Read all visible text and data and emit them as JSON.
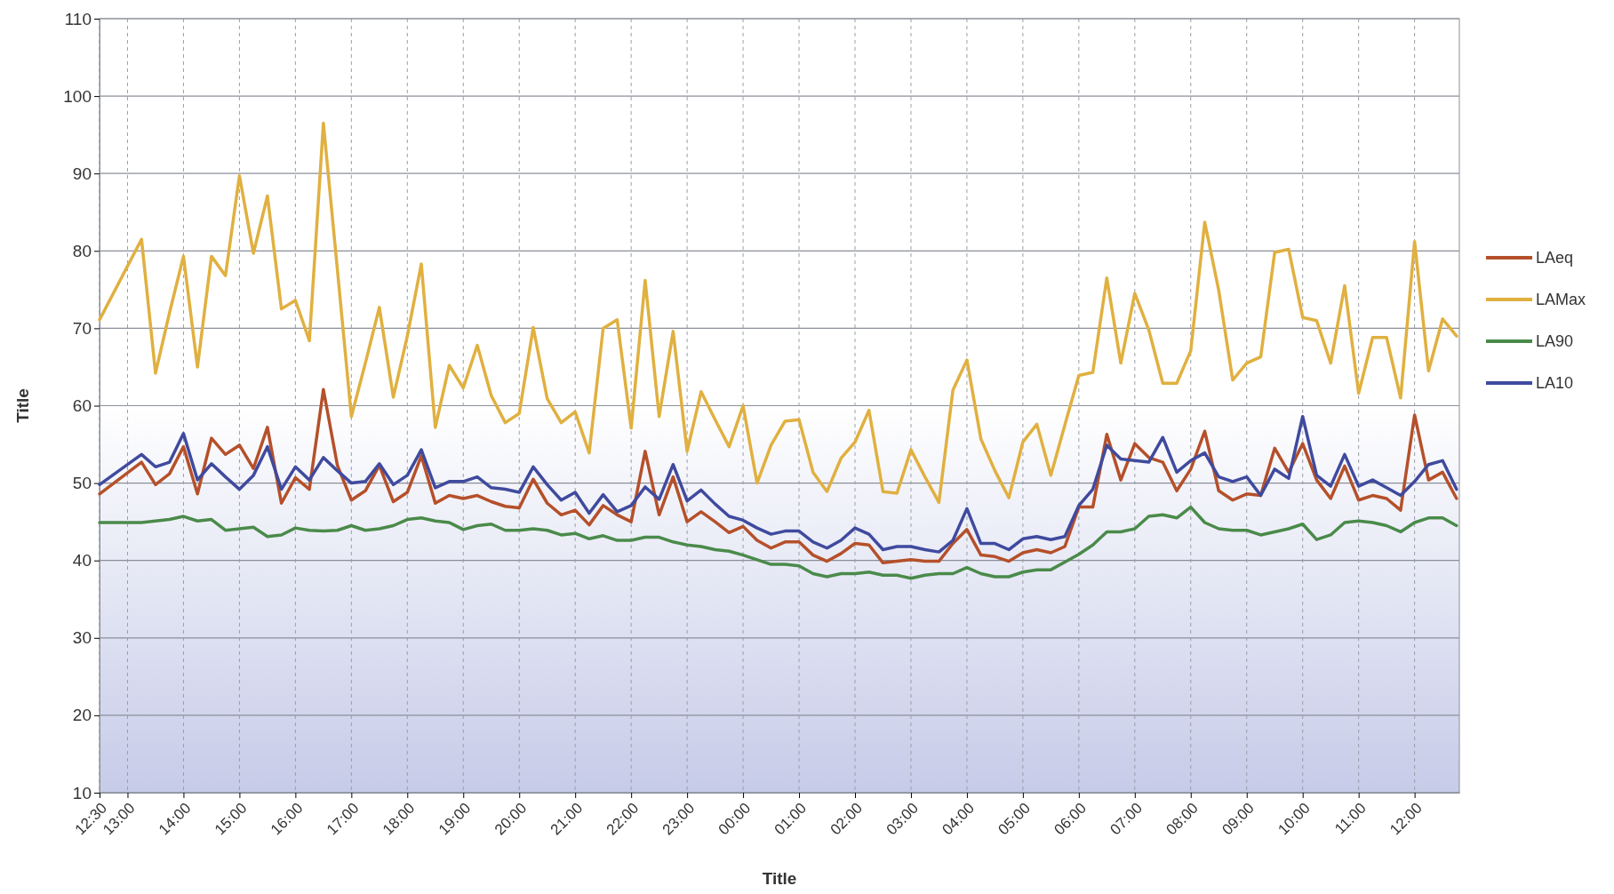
{
  "chart_data": {
    "type": "line",
    "xlabel": "Title",
    "ylabel": "Title",
    "xlim": [
      "2000-01-01T12:30",
      "2000-01-02T12:48"
    ],
    "ylim": [
      10,
      110
    ],
    "yticks": [
      10,
      20,
      30,
      40,
      50,
      60,
      70,
      80,
      90,
      100,
      110
    ],
    "xticks": [
      {
        "value": "2000-01-01T12:30",
        "label": "12:30"
      },
      {
        "value": "2000-01-01T13:00",
        "label": "13:00"
      },
      {
        "value": "2000-01-01T14:00",
        "label": "14:00"
      },
      {
        "value": "2000-01-01T15:00",
        "label": "15:00"
      },
      {
        "value": "2000-01-01T16:00",
        "label": "16:00"
      },
      {
        "value": "2000-01-01T17:00",
        "label": "17:00"
      },
      {
        "value": "2000-01-01T18:00",
        "label": "18:00"
      },
      {
        "value": "2000-01-01T19:00",
        "label": "19:00"
      },
      {
        "value": "2000-01-01T20:00",
        "label": "20:00"
      },
      {
        "value": "2000-01-01T21:00",
        "label": "21:00"
      },
      {
        "value": "2000-01-01T22:00",
        "label": "22:00"
      },
      {
        "value": "2000-01-01T23:00",
        "label": "23:00"
      },
      {
        "value": "2000-01-02T00:00",
        "label": "00:00"
      },
      {
        "value": "2000-01-02T01:00",
        "label": "01:00"
      },
      {
        "value": "2000-01-02T02:00",
        "label": "02:00"
      },
      {
        "value": "2000-01-02T03:00",
        "label": "03:00"
      },
      {
        "value": "2000-01-02T04:00",
        "label": "04:00"
      },
      {
        "value": "2000-01-02T05:00",
        "label": "05:00"
      },
      {
        "value": "2000-01-02T06:00",
        "label": "06:00"
      },
      {
        "value": "2000-01-02T07:00",
        "label": "07:00"
      },
      {
        "value": "2000-01-02T08:00",
        "label": "08:00"
      },
      {
        "value": "2000-01-02T09:00",
        "label": "09:00"
      },
      {
        "value": "2000-01-02T10:00",
        "label": "10:00"
      },
      {
        "value": "2000-01-02T11:00",
        "label": "11:00"
      },
      {
        "value": "2000-01-02T12:00",
        "label": "12:00"
      }
    ],
    "x": [
      "2000-01-01T12:30",
      "2000-01-01T13:15",
      "2000-01-01T13:30",
      "2000-01-01T13:45",
      "2000-01-01T14:00",
      "2000-01-01T14:15",
      "2000-01-01T14:30",
      "2000-01-01T14:45",
      "2000-01-01T15:00",
      "2000-01-01T15:15",
      "2000-01-01T15:30",
      "2000-01-01T15:45",
      "2000-01-01T16:00",
      "2000-01-01T16:15",
      "2000-01-01T16:30",
      "2000-01-01T16:45",
      "2000-01-01T17:00",
      "2000-01-01T17:15",
      "2000-01-01T17:30",
      "2000-01-01T17:45",
      "2000-01-01T18:00",
      "2000-01-01T18:15",
      "2000-01-01T18:30",
      "2000-01-01T18:45",
      "2000-01-01T19:00",
      "2000-01-01T19:15",
      "2000-01-01T19:30",
      "2000-01-01T19:45",
      "2000-01-01T20:00",
      "2000-01-01T20:15",
      "2000-01-01T20:30",
      "2000-01-01T20:45",
      "2000-01-01T21:00",
      "2000-01-01T21:15",
      "2000-01-01T21:30",
      "2000-01-01T21:45",
      "2000-01-01T22:00",
      "2000-01-01T22:15",
      "2000-01-01T22:30",
      "2000-01-01T22:45",
      "2000-01-01T23:00",
      "2000-01-01T23:15",
      "2000-01-01T23:30",
      "2000-01-01T23:45",
      "2000-01-02T00:00",
      "2000-01-02T00:15",
      "2000-01-02T00:30",
      "2000-01-02T00:45",
      "2000-01-02T01:00",
      "2000-01-02T01:15",
      "2000-01-02T01:30",
      "2000-01-02T01:45",
      "2000-01-02T02:00",
      "2000-01-02T02:15",
      "2000-01-02T02:30",
      "2000-01-02T02:45",
      "2000-01-02T03:00",
      "2000-01-02T03:15",
      "2000-01-02T03:30",
      "2000-01-02T03:45",
      "2000-01-02T04:00",
      "2000-01-02T04:15",
      "2000-01-02T04:30",
      "2000-01-02T04:45",
      "2000-01-02T05:00",
      "2000-01-02T05:15",
      "2000-01-02T05:30",
      "2000-01-02T05:45",
      "2000-01-02T06:00",
      "2000-01-02T06:15",
      "2000-01-02T06:30",
      "2000-01-02T06:45",
      "2000-01-02T07:00",
      "2000-01-02T07:15",
      "2000-01-02T07:30",
      "2000-01-02T07:45",
      "2000-01-02T08:00",
      "2000-01-02T08:15",
      "2000-01-02T08:30",
      "2000-01-02T08:45",
      "2000-01-02T09:00",
      "2000-01-02T09:15",
      "2000-01-02T09:30",
      "2000-01-02T09:45",
      "2000-01-02T10:00",
      "2000-01-02T10:15",
      "2000-01-02T10:30",
      "2000-01-02T10:45",
      "2000-01-02T11:00",
      "2000-01-02T11:15",
      "2000-01-02T11:30",
      "2000-01-02T11:45",
      "2000-01-02T12:00",
      "2000-01-02T12:15",
      "2000-01-02T12:30",
      "2000-01-02T12:45"
    ],
    "grid": true,
    "legend": "right",
    "line_style": "solid",
    "marker": "none",
    "series": [
      {
        "name": "LAeq",
        "color": "#b5502a",
        "values": [
          48.6,
          52.7,
          49.8,
          51.2,
          54.7,
          48.6,
          55.8,
          53.7,
          54.9,
          51.9,
          57.2,
          47.4,
          50.7,
          49.2,
          62.1,
          52.3,
          47.8,
          49,
          52.3,
          47.6,
          48.8,
          53.5,
          47.4,
          48.4,
          48,
          48.4,
          47.6,
          47,
          46.8,
          50.5,
          47.4,
          45.9,
          46.5,
          44.6,
          47.1,
          45.9,
          45,
          54.1,
          45.9,
          50.8,
          45,
          46.3,
          45,
          43.6,
          44.4,
          42.6,
          41.6,
          42.4,
          42.4,
          40.7,
          39.9,
          40.9,
          42.2,
          42,
          39.7,
          39.9,
          40.1,
          39.9,
          39.9,
          42.2,
          44,
          40.7,
          40.5,
          39.9,
          41,
          41.4,
          41,
          41.8,
          46.9,
          46.9,
          56.3,
          50.4,
          55.1,
          53.3,
          52.7,
          49,
          51.8,
          56.7,
          49,
          47.8,
          48.6,
          48.4,
          54.5,
          51.4,
          55.1,
          50.4,
          48,
          52.2,
          47.8,
          48.4,
          48,
          46.5,
          58.8,
          50.4,
          51.4,
          48
        ]
      },
      {
        "name": "LAMax",
        "color": "#e0b040",
        "values": [
          71.1,
          81.5,
          64.2,
          72,
          79.3,
          65,
          79.3,
          76.8,
          89.7,
          79.7,
          87.1,
          72.5,
          73.6,
          68.4,
          96.5,
          77.6,
          58.6,
          65.5,
          72.7,
          61.1,
          69,
          78.3,
          57.2,
          65.2,
          62.3,
          67.8,
          61.3,
          57.8,
          59,
          70.1,
          60.9,
          57.8,
          59.2,
          53.9,
          70,
          71.1,
          57.1,
          76.2,
          58.6,
          69.6,
          54.1,
          61.8,
          58.2,
          54.7,
          60,
          50,
          54.9,
          58,
          58.2,
          51.4,
          48.9,
          53.2,
          55.3,
          59.4,
          48.9,
          48.7,
          54.3,
          50.8,
          47.5,
          62,
          65.9,
          55.7,
          51.6,
          48.1,
          55.3,
          57.6,
          51,
          57.5,
          63.9,
          64.3,
          76.5,
          65.5,
          74.5,
          69.8,
          62.9,
          62.9,
          67.1,
          83.7,
          74.9,
          63.3,
          65.5,
          66.3,
          79.8,
          80.2,
          71.4,
          71,
          65.5,
          75.5,
          61.6,
          68.8,
          68.8,
          61,
          81.2,
          64.5,
          71.2,
          69
        ]
      },
      {
        "name": "LA90",
        "color": "#4a8a4a",
        "values": [
          44.9,
          44.9,
          45.1,
          45.3,
          45.7,
          45.1,
          45.3,
          43.9,
          44.1,
          44.3,
          43.1,
          43.3,
          44.2,
          43.9,
          43.8,
          43.9,
          44.5,
          43.9,
          44.1,
          44.5,
          45.3,
          45.5,
          45.1,
          44.9,
          44,
          44.5,
          44.7,
          43.9,
          43.9,
          44.1,
          43.9,
          43.3,
          43.5,
          42.8,
          43.2,
          42.6,
          42.6,
          43,
          43,
          42.4,
          42,
          41.8,
          41.4,
          41.2,
          40.7,
          40.1,
          39.5,
          39.5,
          39.3,
          38.3,
          37.9,
          38.3,
          38.3,
          38.5,
          38.1,
          38.1,
          37.7,
          38.1,
          38.3,
          38.3,
          39.1,
          38.3,
          37.9,
          37.9,
          38.5,
          38.8,
          38.8,
          39.8,
          40.8,
          42,
          43.7,
          43.7,
          44.1,
          45.7,
          45.9,
          45.5,
          46.9,
          44.9,
          44.1,
          43.9,
          43.9,
          43.3,
          43.7,
          44.1,
          44.7,
          42.7,
          43.3,
          44.9,
          45.1,
          44.9,
          44.5,
          43.7,
          44.9,
          45.5,
          45.5,
          44.5
        ]
      },
      {
        "name": "LA10",
        "color": "#3f4a9e",
        "values": [
          49.8,
          53.7,
          52.1,
          52.7,
          56.4,
          50.4,
          52.5,
          50.8,
          49.2,
          51,
          54.7,
          49.2,
          52.1,
          50.4,
          53.3,
          51.6,
          50,
          50.2,
          52.5,
          49.8,
          51,
          54.3,
          49.4,
          50.2,
          50.2,
          50.8,
          49.4,
          49.2,
          48.8,
          52.1,
          49.8,
          47.8,
          48.8,
          46.1,
          48.5,
          46.3,
          47.1,
          49.5,
          47.9,
          52.4,
          47.7,
          49.1,
          47.3,
          45.7,
          45.2,
          44.2,
          43.4,
          43.8,
          43.8,
          42.4,
          41.6,
          42.6,
          44.2,
          43.4,
          41.4,
          41.8,
          41.8,
          41.4,
          41.1,
          42.6,
          46.7,
          42.2,
          42.2,
          41.4,
          42.8,
          43.1,
          42.7,
          43.1,
          47.1,
          49.2,
          54.9,
          53.1,
          52.9,
          52.7,
          55.9,
          51.4,
          52.9,
          53.9,
          50.8,
          50.2,
          50.8,
          48.4,
          51.8,
          50.6,
          58.6,
          51,
          49.6,
          53.7,
          49.6,
          50.4,
          49.4,
          48.4,
          50.2,
          52.4,
          52.9,
          49.2
        ]
      }
    ]
  }
}
